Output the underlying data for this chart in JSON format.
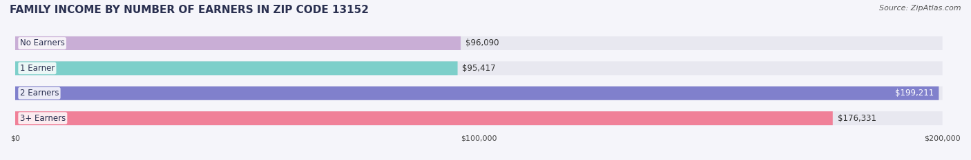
{
  "title": "FAMILY INCOME BY NUMBER OF EARNERS IN ZIP CODE 13152",
  "source": "Source: ZipAtlas.com",
  "categories": [
    "No Earners",
    "1 Earner",
    "2 Earners",
    "3+ Earners"
  ],
  "values": [
    96090,
    95417,
    199211,
    176331
  ],
  "labels": [
    "$96,090",
    "$95,417",
    "$199,211",
    "$176,331"
  ],
  "bar_colors": [
    "#c9aed6",
    "#7dcfca",
    "#8080cc",
    "#f08098"
  ],
  "bar_bg_color": "#e8e8f0",
  "xlim": [
    0,
    200000
  ],
  "xticks": [
    0,
    100000,
    200000
  ],
  "xtick_labels": [
    "$0",
    "$100,000",
    "$200,000"
  ],
  "title_fontsize": 11,
  "source_fontsize": 8,
  "label_fontsize": 8.5,
  "category_fontsize": 8.5,
  "background_color": "#f5f5fa",
  "title_color": "#2a3050",
  "source_color": "#555555"
}
